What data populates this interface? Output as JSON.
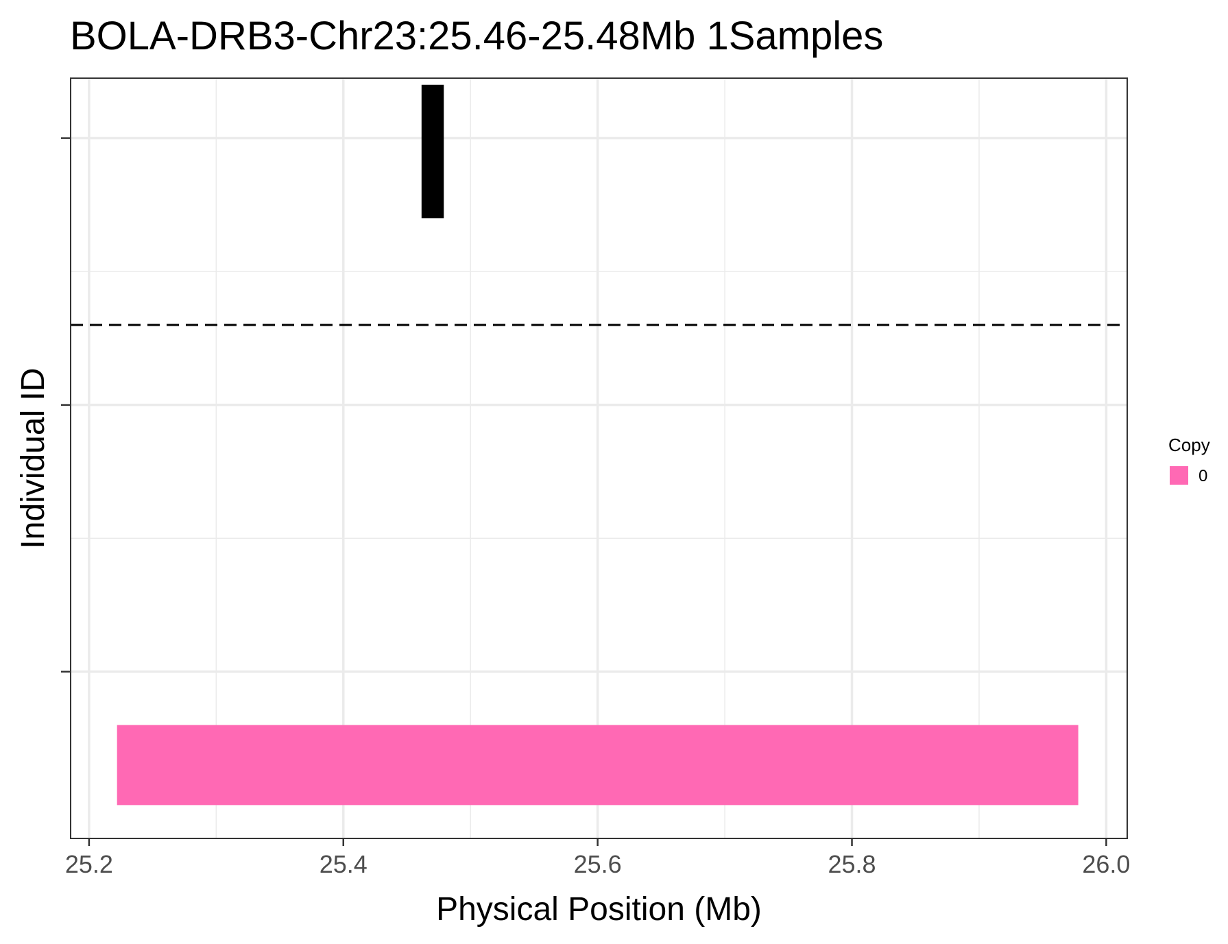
{
  "chart_data": {
    "type": "bar",
    "title": "BOLA-DRB3-Chr23:25.46-25.48Mb 1Samples",
    "xlabel": "Physical Position (Mb)",
    "ylabel": "Individual ID",
    "xlim": [
      25.1855,
      26.0165
    ],
    "ylim": [
      0.375,
      3.225
    ],
    "x_ticks": [
      25.2,
      25.4,
      25.6,
      25.8,
      26.0
    ],
    "x_tick_labels": [
      "25.2",
      "25.4",
      "25.6",
      "25.8",
      "26.0"
    ],
    "y_ticks": [
      1,
      2,
      3
    ],
    "y_tick_labels": [
      "",
      "",
      ""
    ],
    "grid": true,
    "segments": [
      {
        "sample": "1",
        "copy": "0",
        "x_start": 25.222,
        "x_end": 25.978,
        "y_bottom": 0.5,
        "y_top": 0.8,
        "color": "#FF69B4"
      }
    ],
    "gene": {
      "name": "BOLA-DRB3",
      "x_start": 25.4615,
      "x_end": 25.479,
      "y_bottom": 2.7,
      "y_top": 3.2,
      "color": "#000000",
      "label_x": 25.46,
      "label_y": 3.6
    },
    "separator_line": {
      "y": 2.3,
      "style": "dashed",
      "color": "#000000"
    },
    "legend": {
      "title": "Copy",
      "position": "right",
      "entries": [
        {
          "label": "0",
          "color": "#FF69B4"
        }
      ]
    }
  }
}
